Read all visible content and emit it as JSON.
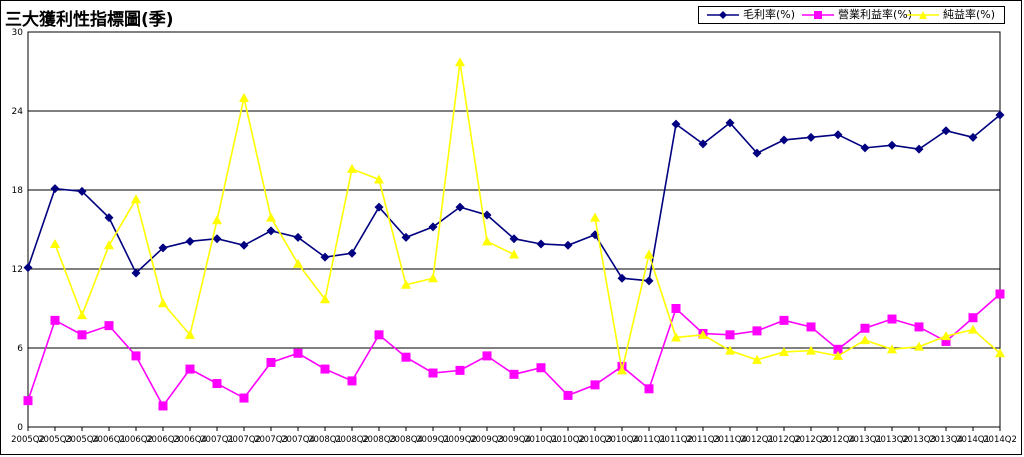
{
  "chart_data": {
    "type": "line",
    "title": "三大獲利性指標圖(季)",
    "ylim": [
      0,
      30
    ],
    "yticks": [
      0,
      6,
      12,
      18,
      24,
      30
    ],
    "grid": true,
    "legend_placement": "top-right",
    "categories": [
      "2005Q2",
      "2005Q3",
      "2005Q4",
      "2006Q1",
      "2006Q2",
      "2006Q3",
      "2006Q4",
      "2007Q1",
      "2007Q2",
      "2007Q3",
      "2007Q4",
      "2008Q1",
      "2008Q2",
      "2008Q3",
      "2008Q4",
      "2009Q1",
      "2009Q2",
      "2009Q3",
      "2009Q4",
      "2010Q1",
      "2010Q2",
      "2010Q3",
      "2010Q4",
      "2011Q1",
      "2011Q2",
      "2011Q3",
      "2011Q4",
      "2012Q1",
      "2012Q2",
      "2012Q3",
      "2012Q4",
      "2013Q1",
      "2013Q2",
      "2013Q3",
      "2013Q4",
      "2014Q1",
      "2014Q2"
    ],
    "series": [
      {
        "name": "毛利率(%)",
        "color": "#000080",
        "marker": "diamond",
        "values": [
          12.1,
          18.1,
          17.9,
          15.9,
          11.7,
          13.6,
          14.1,
          14.3,
          13.8,
          14.9,
          14.4,
          12.9,
          13.2,
          16.7,
          14.4,
          15.2,
          16.7,
          16.1,
          14.3,
          13.9,
          13.8,
          14.6,
          11.3,
          11.1,
          23.0,
          21.5,
          23.1,
          20.8,
          21.8,
          22.0,
          22.2,
          21.2,
          21.4,
          21.1,
          22.5,
          22.0,
          23.7
        ]
      },
      {
        "name": "營業利益率(%)",
        "color": "#ff00ff",
        "marker": "square",
        "values": [
          2.0,
          8.1,
          7.0,
          7.7,
          5.4,
          1.6,
          4.4,
          3.3,
          2.2,
          4.9,
          5.6,
          4.4,
          3.5,
          7.0,
          5.3,
          4.1,
          4.3,
          5.4,
          4.0,
          4.5,
          2.4,
          3.2,
          4.6,
          2.9,
          9.0,
          7.1,
          7.0,
          7.3,
          8.1,
          7.6,
          5.9,
          7.5,
          8.2,
          7.6,
          6.5,
          8.3,
          10.1
        ]
      },
      {
        "name": "純益率(%)",
        "color": "#ffff00",
        "marker": "triangle",
        "values": [
          null,
          13.9,
          8.5,
          13.8,
          17.3,
          9.4,
          7.0,
          15.7,
          25.0,
          15.9,
          12.4,
          9.7,
          19.6,
          18.8,
          10.8,
          11.3,
          27.7,
          14.1,
          13.1,
          null,
          null,
          15.9,
          4.3,
          13.1,
          6.8,
          7.0,
          5.8,
          5.1,
          5.7,
          5.8,
          5.4,
          6.6,
          5.9,
          6.1,
          6.9,
          7.4,
          5.6
        ]
      }
    ]
  }
}
